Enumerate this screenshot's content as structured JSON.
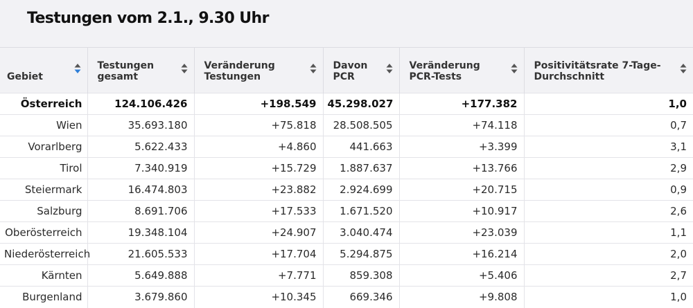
{
  "title": "Testungen vom 2.1., 9.30 Uhr",
  "columns": [
    {
      "label": "Gebiet",
      "sort": "active"
    },
    {
      "label": "Testungen gesamt",
      "sort": "none"
    },
    {
      "label": "Veränderung Testungen",
      "sort": "none"
    },
    {
      "label": "Davon PCR",
      "sort": "none"
    },
    {
      "label": "Veränderung PCR-Tests",
      "sort": "none"
    },
    {
      "label": "Positivitätsrate 7-Tage-Durchschnitt",
      "sort": "none"
    }
  ],
  "rows": [
    [
      "Österreich",
      "124.106.426",
      "+198.549",
      "45.298.027",
      "+177.382",
      "1,0"
    ],
    [
      "Wien",
      "35.693.180",
      "+75.818",
      "28.508.505",
      "+74.118",
      "0,7"
    ],
    [
      "Vorarlberg",
      "5.622.433",
      "+4.860",
      "441.663",
      "+3.399",
      "3,1"
    ],
    [
      "Tirol",
      "7.340.919",
      "+15.729",
      "1.887.637",
      "+13.766",
      "2,9"
    ],
    [
      "Steiermark",
      "16.474.803",
      "+23.882",
      "2.924.699",
      "+20.715",
      "0,9"
    ],
    [
      "Salzburg",
      "8.691.706",
      "+17.533",
      "1.671.520",
      "+10.917",
      "2,6"
    ],
    [
      "Oberösterreich",
      "19.348.104",
      "+24.907",
      "3.040.474",
      "+23.039",
      "1,1"
    ],
    [
      "Niederösterreich",
      "21.605.533",
      "+17.704",
      "5.294.875",
      "+16.214",
      "2,0"
    ],
    [
      "Kärnten",
      "5.649.888",
      "+7.771",
      "859.308",
      "+5.406",
      "2,7"
    ],
    [
      "Burgenland",
      "3.679.860",
      "+10.345",
      "669.346",
      "+9.808",
      "1,0"
    ]
  ],
  "colors": {
    "header_bg": "#f2f2f5",
    "sort_active_up": "#2f7fd8",
    "sort_active_down": "#555555",
    "sort_inactive": "#555555"
  },
  "icons": {
    "sort": "sort-icon"
  }
}
